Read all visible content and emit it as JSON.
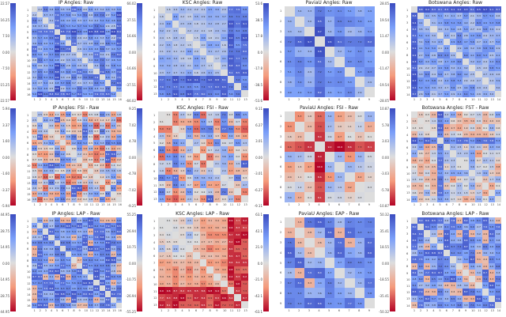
{
  "chart_data": [
    {
      "type": "heatmap",
      "title": "IP Angles: Raw",
      "dataset": "IP",
      "size": 16,
      "colorbar_ticks": [
        "22.57",
        "16.25",
        "7.50",
        "0.00",
        "-7.50",
        "-15.25",
        "-22.57"
      ],
      "pattern": "raw-blue"
    },
    {
      "type": "heatmap",
      "title": "KSC Angles: Raw",
      "dataset": "KSC",
      "size": 13,
      "colorbar_ticks": [
        "66.02",
        "37.51",
        "16.66",
        "0.00",
        "-16.66",
        "-37.51",
        "-66.02"
      ],
      "pattern": "raw-blue-corner"
    },
    {
      "type": "heatmap",
      "title": "PaviaU Angles: Raw",
      "dataset": "PaviaU",
      "size": 9,
      "colorbar_ticks": [
        "53.6",
        "38.5",
        "17.8",
        "0.0",
        "-17.8",
        "-38.5",
        "-53.6"
      ],
      "pattern": "raw-blue-cross"
    },
    {
      "type": "heatmap",
      "title": "Botswana Angles: Raw",
      "dataset": "Botswana",
      "size": 14,
      "colorbar_ticks": [
        "28.05",
        "19.54",
        "11.47",
        "0.00",
        "-11.47",
        "-19.54",
        "-28.05"
      ],
      "pattern": "raw-blue-firstcol"
    },
    {
      "type": "heatmap",
      "title": "IP Angles: FSI - Raw",
      "dataset": "IP",
      "size": 16,
      "colorbar_ticks": [
        "5.94",
        "3.37",
        "1.60",
        "0.00",
        "-1.60",
        "-3.37",
        "-5.94"
      ],
      "pattern": "diff-mixed"
    },
    {
      "type": "heatmap",
      "title": "KSC Angles: FSI - Raw",
      "dataset": "KSC",
      "size": 13,
      "colorbar_ticks": [
        "9.25",
        "7.02",
        "4.78",
        "0.00",
        "-4.78",
        "-7.02",
        "-9.25"
      ],
      "pattern": "diff-mixed"
    },
    {
      "type": "heatmap",
      "title": "PaviaU Angles: FSI - Raw",
      "dataset": "PaviaU",
      "size": 9,
      "colorbar_ticks": [
        "9.11",
        "6.27",
        "3.01",
        "0.00",
        "-3.01",
        "-6.27",
        "-9.11"
      ],
      "pattern": "diff-red-cross"
    },
    {
      "type": "heatmap",
      "title": "Botswana Angles: FST - Raw",
      "dataset": "Botswana",
      "size": 14,
      "colorbar_ticks": [
        "10.87",
        "5.78",
        "3.03",
        "0.00",
        "-3.03",
        "-5.78",
        "-10.87"
      ],
      "pattern": "diff-blue-col5"
    },
    {
      "type": "heatmap",
      "title": "IP Angles: LAP - Raw",
      "dataset": "IP",
      "size": 16,
      "colorbar_ticks": [
        "44.95",
        "28.75",
        "14.95",
        "0.00",
        "-14.95",
        "-28.75",
        "-44.95"
      ],
      "pattern": "lap-blue"
    },
    {
      "type": "heatmap",
      "title": "KSC Angles: LAP - Raw",
      "dataset": "KSC",
      "size": 13,
      "colorbar_ticks": [
        "55.25",
        "26.94",
        "10.75",
        "0.00",
        "-10.75",
        "-26.94",
        "-55.25"
      ],
      "pattern": "lap-red"
    },
    {
      "type": "heatmap",
      "title": "PaviaU Angles: EAP - Raw",
      "dataset": "PaviaU",
      "size": 9,
      "colorbar_ticks": [
        "63.1",
        "42.1",
        "21.0",
        "0.0",
        "-21.0",
        "-42.1",
        "-63.1"
      ],
      "pattern": "lap-blue"
    },
    {
      "type": "heatmap",
      "title": "Botswana Angles: LAP - Raw",
      "dataset": "Botswana",
      "size": 14,
      "colorbar_ticks": [
        "50.32",
        "35.41",
        "18.55",
        "0.00",
        "-18.55",
        "-35.41",
        "-50.32"
      ],
      "pattern": "lap-blue"
    }
  ]
}
